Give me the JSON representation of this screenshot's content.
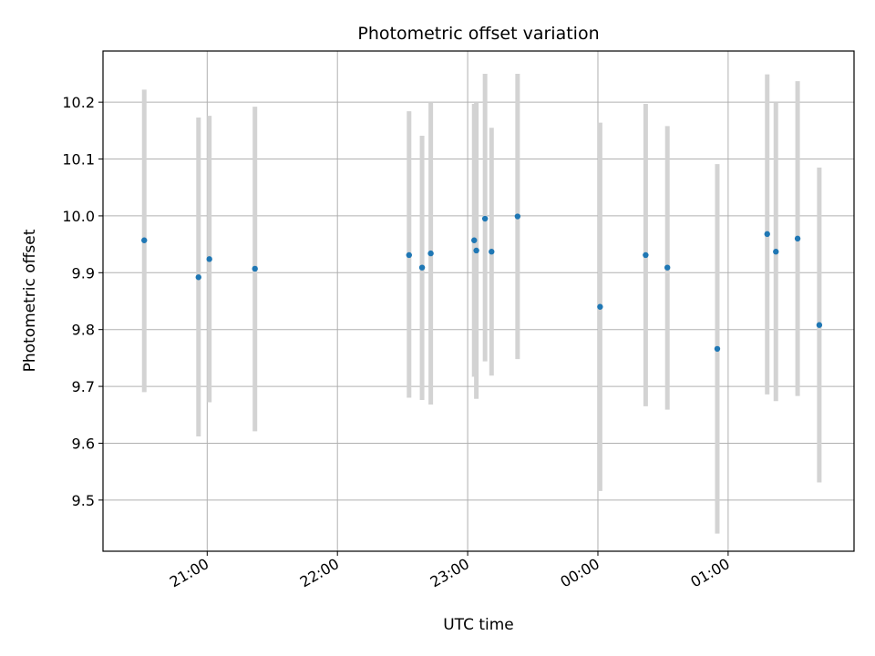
{
  "chart_data": {
    "type": "scatter",
    "title": "Photometric offset variation",
    "xlabel": "UTC time",
    "ylabel": "Photometric offset",
    "x_axis": {
      "kind": "time",
      "range": [
        "20:12",
        "01:58"
      ],
      "ticks": [
        "21:00",
        "22:00",
        "23:00",
        "00:00",
        "01:00"
      ]
    },
    "y_axis": {
      "range": [
        9.41,
        10.29
      ],
      "ticks": [
        9.5,
        9.6,
        9.7,
        9.8,
        9.9,
        10.0,
        10.1,
        10.2
      ]
    },
    "grid": true,
    "marker_color": "#1f77b4",
    "errorbar_color": "#d3d3d3",
    "series": [
      {
        "points": [
          {
            "x": "20:31",
            "y": 9.957,
            "ylow": 9.69,
            "yhigh": 10.222
          },
          {
            "x": "20:56",
            "y": 9.892,
            "ylow": 9.612,
            "yhigh": 10.173
          },
          {
            "x": "21:01",
            "y": 9.924,
            "ylow": 9.672,
            "yhigh": 10.176
          },
          {
            "x": "21:22",
            "y": 9.907,
            "ylow": 9.621,
            "yhigh": 10.192
          },
          {
            "x": "22:33",
            "y": 9.931,
            "ylow": 9.68,
            "yhigh": 10.184
          },
          {
            "x": "22:39",
            "y": 9.909,
            "ylow": 9.676,
            "yhigh": 10.141
          },
          {
            "x": "22:43",
            "y": 9.934,
            "ylow": 9.668,
            "yhigh": 10.2
          },
          {
            "x": "23:03",
            "y": 9.957,
            "ylow": 9.717,
            "yhigh": 10.197
          },
          {
            "x": "23:04",
            "y": 9.939,
            "ylow": 9.678,
            "yhigh": 10.2
          },
          {
            "x": "23:08",
            "y": 9.995,
            "ylow": 9.744,
            "yhigh": 10.25
          },
          {
            "x": "23:11",
            "y": 9.937,
            "ylow": 9.719,
            "yhigh": 10.155
          },
          {
            "x": "23:23",
            "y": 9.999,
            "ylow": 9.748,
            "yhigh": 10.25
          },
          {
            "x": "00:01",
            "y": 9.84,
            "ylow": 9.516,
            "yhigh": 10.164
          },
          {
            "x": "00:22",
            "y": 9.931,
            "ylow": 9.665,
            "yhigh": 10.197
          },
          {
            "x": "00:32",
            "y": 9.909,
            "ylow": 9.659,
            "yhigh": 10.158
          },
          {
            "x": "00:55",
            "y": 9.766,
            "ylow": 9.441,
            "yhigh": 10.091
          },
          {
            "x": "01:18",
            "y": 9.968,
            "ylow": 9.686,
            "yhigh": 10.249
          },
          {
            "x": "01:22",
            "y": 9.937,
            "ylow": 9.674,
            "yhigh": 10.2
          },
          {
            "x": "01:32",
            "y": 9.96,
            "ylow": 9.683,
            "yhigh": 10.237
          },
          {
            "x": "01:42",
            "y": 9.808,
            "ylow": 9.531,
            "yhigh": 10.085
          }
        ]
      }
    ]
  }
}
